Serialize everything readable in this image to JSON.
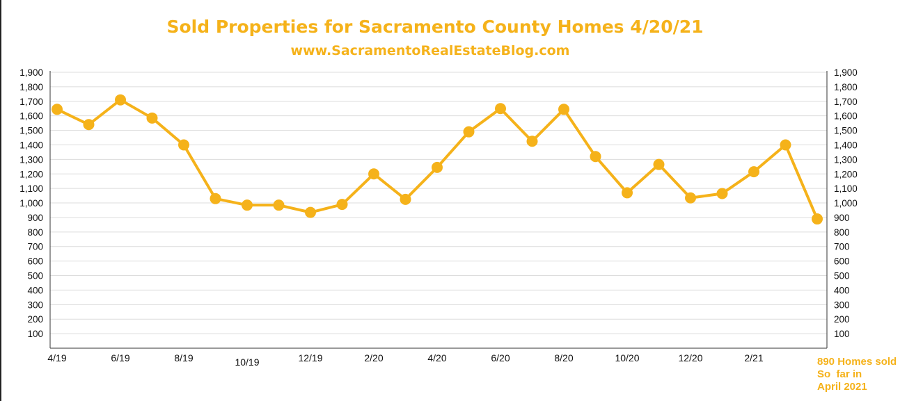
{
  "chart_data": {
    "type": "line",
    "title": "Sold Properties for Sacramento County Homes 4/20/21",
    "subtitle": "www.SacramentoRealEstateBlog.com",
    "xlabel": "",
    "ylabel": "",
    "ylim": [
      0,
      1900
    ],
    "y_ticks": [
      "100",
      "200",
      "300",
      "400",
      "500",
      "600",
      "700",
      "800",
      "900",
      "1,000",
      "1,100",
      "1,200",
      "1,300",
      "1,400",
      "1,500",
      "1,600",
      "1,700",
      "1,800",
      "1,900"
    ],
    "y_axes": "left-and-right",
    "grid": true,
    "line_color": "#f5b21a",
    "categories": [
      "4/19",
      "5/19",
      "6/19",
      "7/19",
      "8/19",
      "9/19",
      "10/19",
      "11/19",
      "12/19",
      "1/20",
      "2/20",
      "3/20",
      "4/20",
      "5/20",
      "6/20",
      "7/20",
      "8/20",
      "9/20",
      "10/20",
      "11/20",
      "12/20",
      "1/21",
      "2/21",
      "3/21",
      "4/21"
    ],
    "x_tick_labels": [
      "4/19",
      "6/19",
      "8/19",
      "10/19",
      "12/19",
      "2/20",
      "4/20",
      "6/20",
      "8/20",
      "10/20",
      "12/20",
      "2/21"
    ],
    "series": [
      {
        "values": [
          1645,
          1540,
          1710,
          1585,
          1400,
          1030,
          985,
          985,
          935,
          990,
          1200,
          1025,
          1245,
          1490,
          1650,
          1425,
          1645,
          1320,
          1070,
          1265,
          1035,
          1065,
          1215,
          1400,
          890
        ]
      }
    ],
    "annotation": [
      "890 Homes sold",
      "So  far in",
      "April 2021"
    ]
  }
}
